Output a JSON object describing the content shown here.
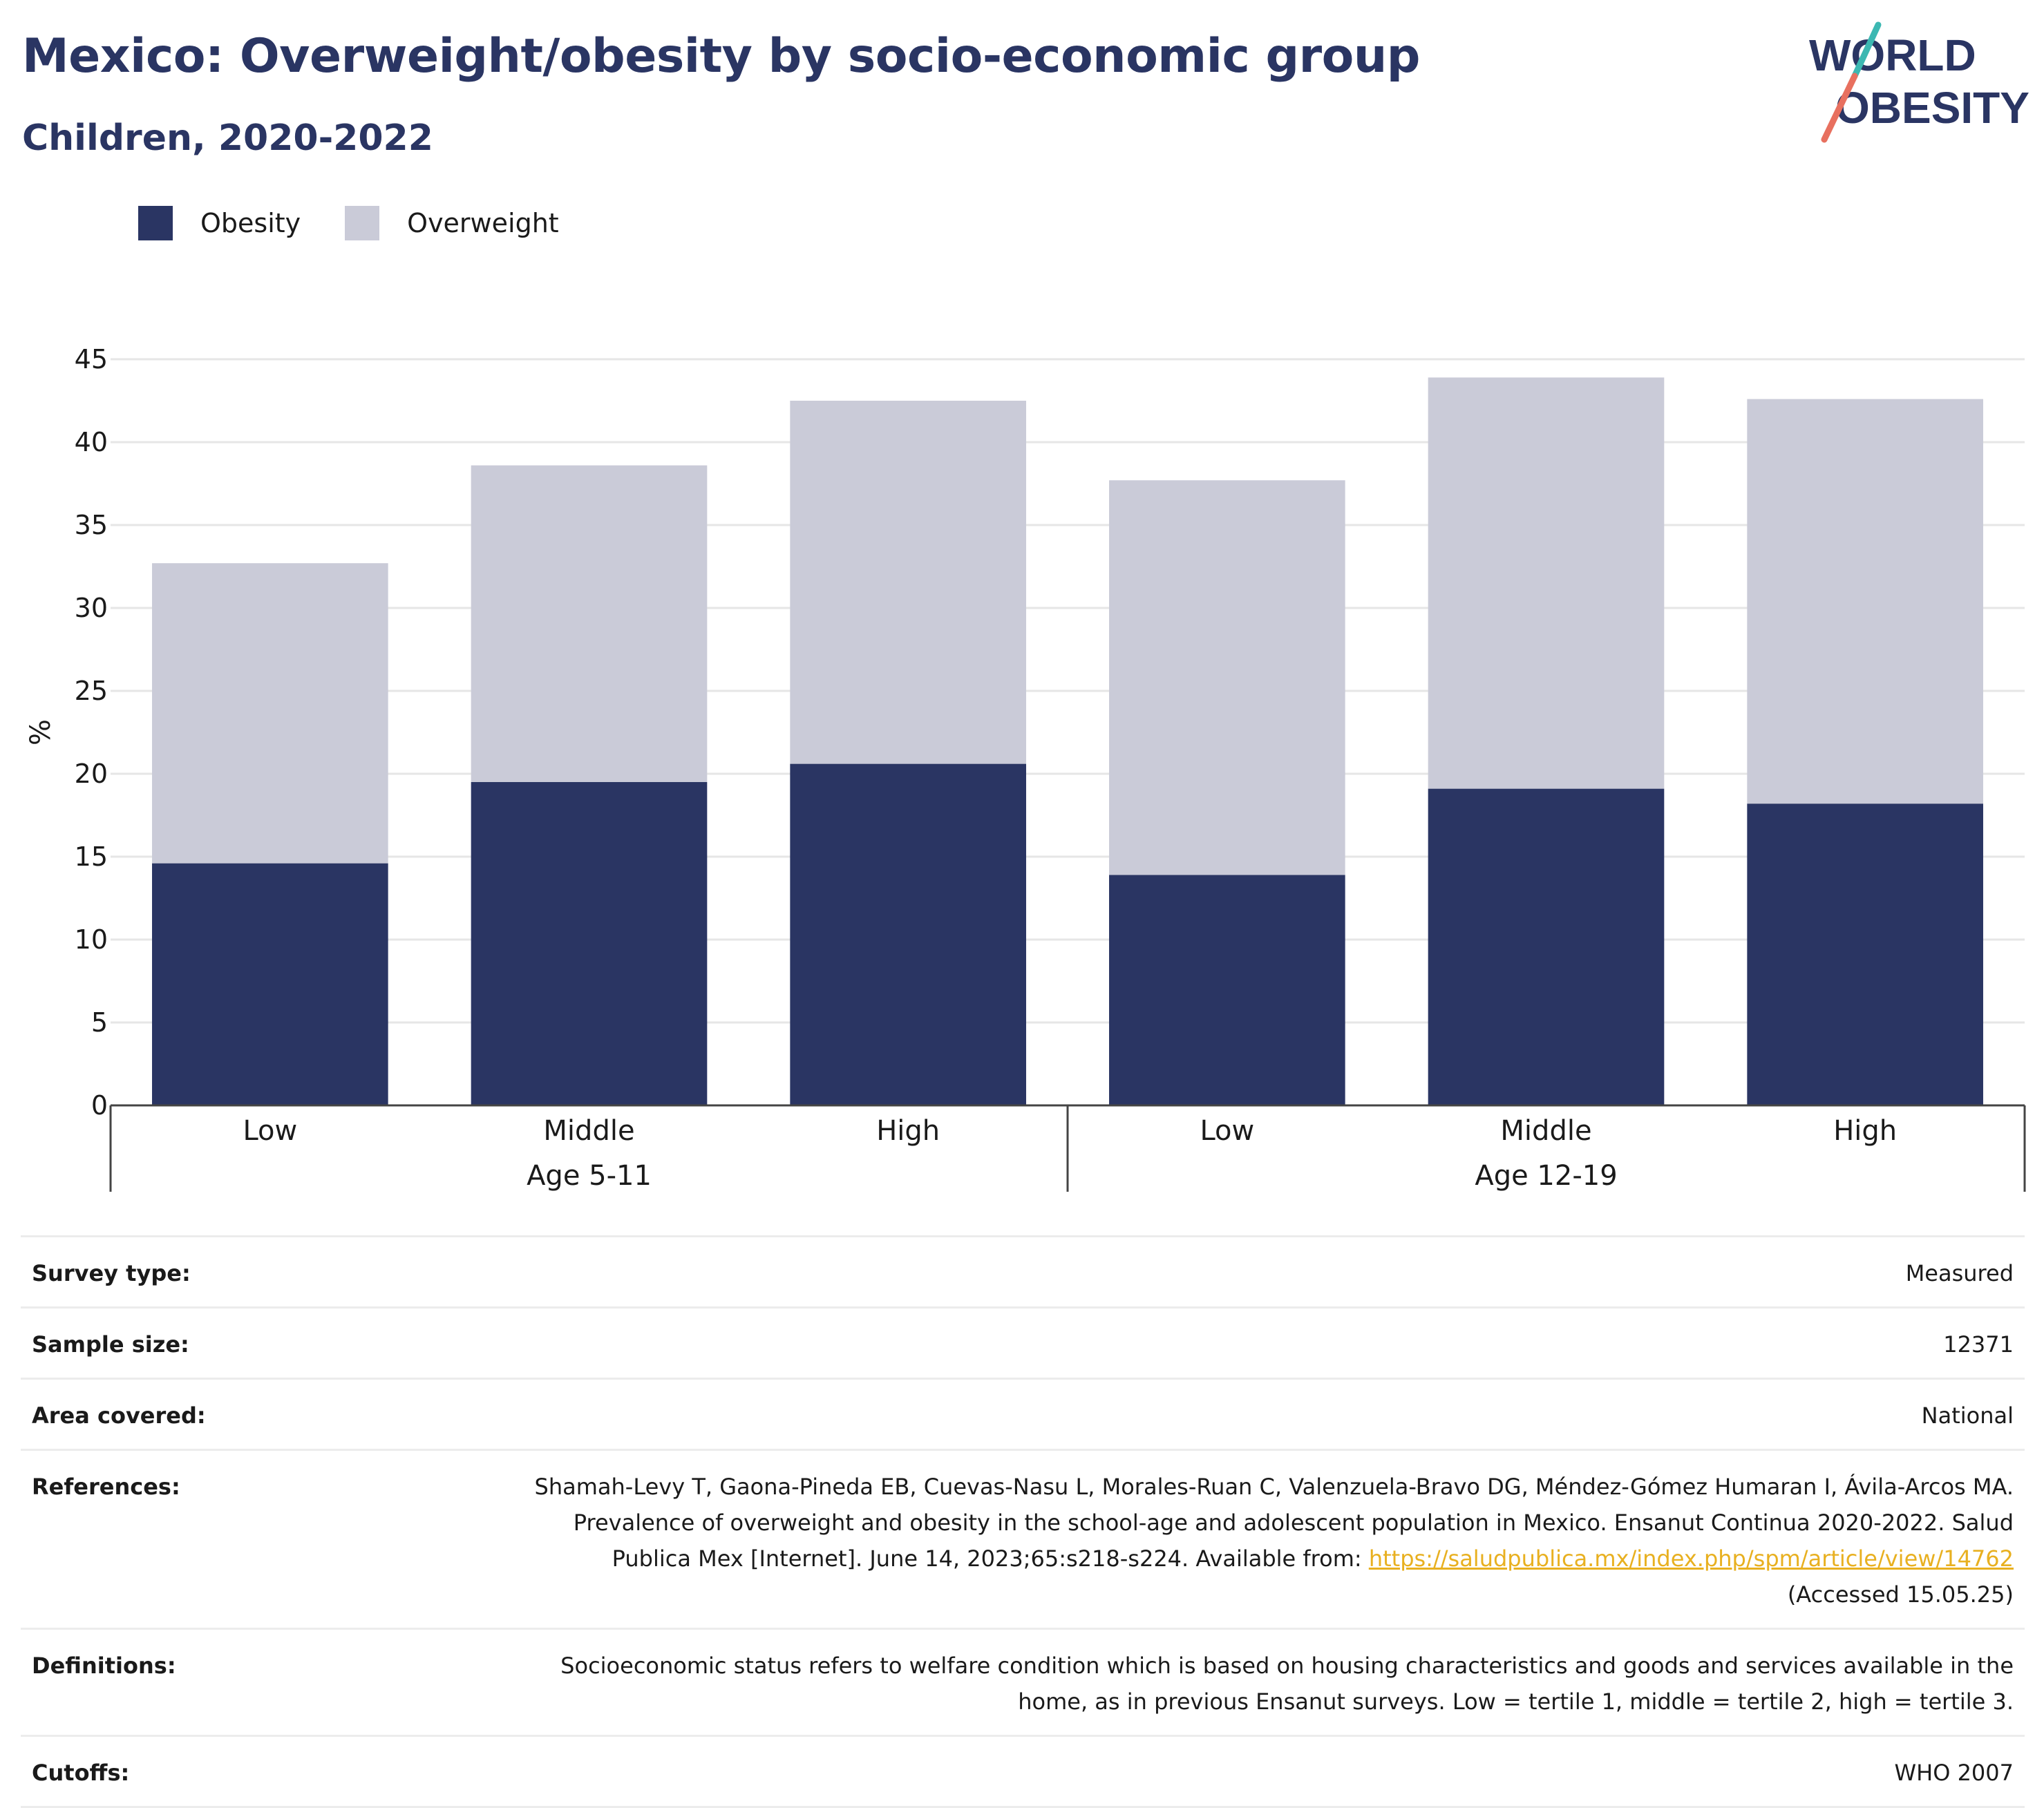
{
  "header": {
    "title": "Mexico: Overweight/obesity by socio-economic group",
    "subtitle": "Children, 2020-2022"
  },
  "logo": {
    "line1": "WORLD",
    "line2": "OBESITY",
    "colors": {
      "text": "#2a3563",
      "slash_top": "#3cb8b2",
      "slash_bottom": "#e8705f"
    }
  },
  "legend": [
    {
      "label": "Obesity",
      "color": "#2a3563"
    },
    {
      "label": "Overweight",
      "color": "#cacbd8"
    }
  ],
  "chart_data": {
    "type": "bar",
    "stacked": true,
    "ylabel": "%",
    "ylim": [
      0,
      45
    ],
    "yticks": [
      "0",
      "5",
      "10",
      "15",
      "20",
      "25",
      "30",
      "35",
      "40",
      "45"
    ],
    "groups": [
      {
        "name": "Age 5-11",
        "categories": [
          "Low",
          "Middle",
          "High"
        ]
      },
      {
        "name": "Age 12-19",
        "categories": [
          "Low",
          "Middle",
          "High"
        ]
      }
    ],
    "series": [
      {
        "name": "Obesity",
        "color": "#2a3563",
        "values": [
          14.6,
          19.5,
          20.6,
          13.9,
          19.1,
          18.2
        ]
      },
      {
        "name": "Overweight",
        "color": "#cacbd8",
        "values": [
          18.1,
          19.1,
          21.9,
          23.8,
          24.8,
          24.4
        ]
      }
    ],
    "grid": true,
    "legend_position": "top-left"
  },
  "meta": {
    "survey_type": {
      "label": "Survey type:",
      "value": "Measured"
    },
    "sample_size": {
      "label": "Sample size:",
      "value": "12371"
    },
    "area_covered": {
      "label": "Area covered:",
      "value": "National"
    },
    "references": {
      "label": "References:",
      "text": "Shamah-Levy T, Gaona-Pineda EB, Cuevas-Nasu L, Morales-Ruan C, Valenzuela-Bravo DG, Méndez-Gómez Humaran I, Ávila-Arcos MA. Prevalence of overweight and obesity in the school-age and adolescent population in Mexico. Ensanut Continua 2020-2022. Salud Publica Mex [Internet]. June 14, 2023;65:s218-s224. Available from:",
      "link": "https://saludpublica.mx/index.php/spm/article/view/14762",
      "accessed": "(Accessed 15.05.25)"
    },
    "definitions": {
      "label": "Definitions:",
      "value": "Socioeconomic status refers to welfare condition which is based on housing characteristics and goods and services available in the home, as in previous Ensanut surveys. Low = tertile 1, middle = tertile 2, high = tertile 3."
    },
    "cutoffs": {
      "label": "Cutoffs:",
      "value": "WHO 2007"
    }
  }
}
